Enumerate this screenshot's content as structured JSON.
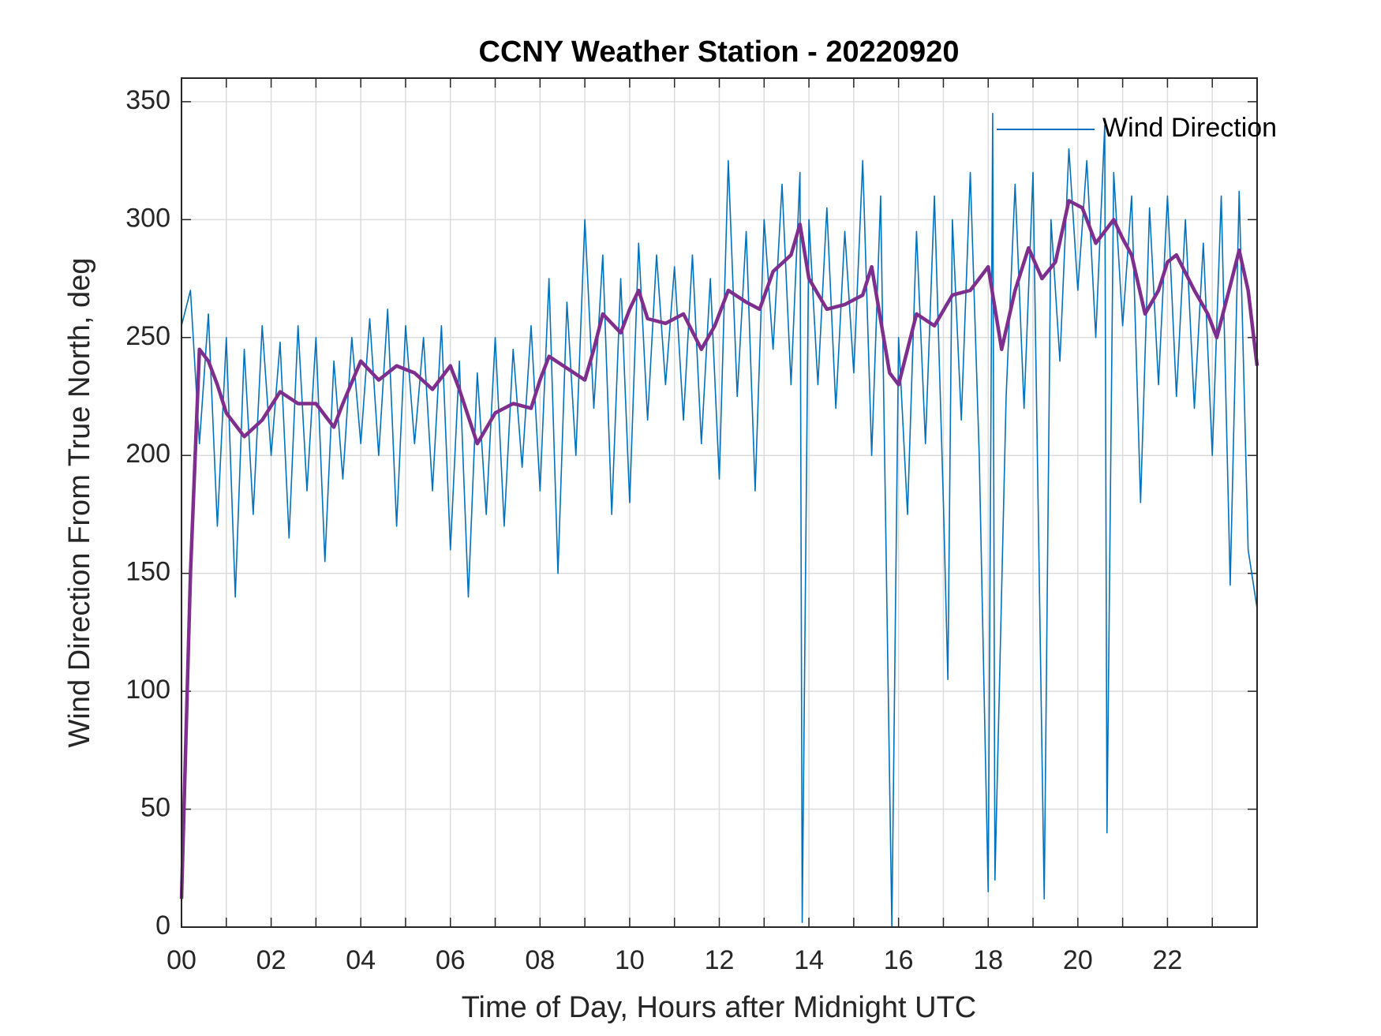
{
  "chart_data": {
    "type": "line",
    "title": "CCNY Weather Station - 20220920",
    "xlabel": "Time of Day, Hours after Midnight UTC",
    "ylabel": "Wind Direction From True North, deg",
    "xlim": [
      0,
      24
    ],
    "ylim": [
      0,
      360
    ],
    "xticks": [
      {
        "value": 0,
        "label": "00"
      },
      {
        "value": 2,
        "label": "02"
      },
      {
        "value": 4,
        "label": "04"
      },
      {
        "value": 6,
        "label": "06"
      },
      {
        "value": 8,
        "label": "08"
      },
      {
        "value": 10,
        "label": "10"
      },
      {
        "value": 12,
        "label": "12"
      },
      {
        "value": 14,
        "label": "14"
      },
      {
        "value": 16,
        "label": "16"
      },
      {
        "value": 18,
        "label": "18"
      },
      {
        "value": 20,
        "label": "20"
      },
      {
        "value": 22,
        "label": "22"
      }
    ],
    "xminorticks": [
      1,
      3,
      5,
      7,
      9,
      11,
      13,
      15,
      17,
      19,
      21,
      23
    ],
    "yticks": [
      0,
      50,
      100,
      150,
      200,
      250,
      300,
      350
    ],
    "grid": true,
    "legend": "upper right",
    "series": [
      {
        "name": "Wind Direction",
        "color": "#0072bd",
        "x": [
          0,
          0.2,
          0.4,
          0.6,
          0.8,
          1.0,
          1.2,
          1.4,
          1.6,
          1.8,
          2.0,
          2.2,
          2.4,
          2.6,
          2.8,
          3.0,
          3.2,
          3.4,
          3.6,
          3.8,
          4.0,
          4.2,
          4.4,
          4.6,
          4.8,
          5.0,
          5.2,
          5.4,
          5.6,
          5.8,
          6.0,
          6.2,
          6.4,
          6.6,
          6.8,
          7.0,
          7.2,
          7.4,
          7.6,
          7.8,
          8.0,
          8.2,
          8.4,
          8.6,
          8.8,
          9.0,
          9.2,
          9.4,
          9.6,
          9.8,
          10.0,
          10.2,
          10.4,
          10.6,
          10.8,
          11.0,
          11.2,
          11.4,
          11.6,
          11.8,
          12.0,
          12.2,
          12.4,
          12.6,
          12.8,
          13.0,
          13.2,
          13.4,
          13.6,
          13.8,
          13.85,
          14.0,
          14.2,
          14.4,
          14.6,
          14.8,
          15.0,
          15.2,
          15.4,
          15.6,
          15.85,
          16.0,
          16.2,
          16.4,
          16.6,
          16.8,
          17.0,
          17.1,
          17.2,
          17.4,
          17.6,
          17.8,
          18.0,
          18.1,
          18.15,
          18.4,
          18.6,
          18.8,
          19.0,
          19.25,
          19.4,
          19.6,
          19.8,
          20.0,
          20.2,
          20.4,
          20.6,
          20.65,
          20.8,
          21.0,
          21.2,
          21.4,
          21.6,
          21.8,
          22.0,
          22.2,
          22.4,
          22.6,
          22.8,
          23.0,
          23.2,
          23.4,
          23.6,
          23.8,
          24.0
        ],
        "values": [
          255,
          270,
          205,
          260,
          170,
          250,
          140,
          245,
          175,
          255,
          200,
          248,
          165,
          255,
          185,
          250,
          155,
          240,
          190,
          250,
          205,
          258,
          200,
          262,
          170,
          255,
          205,
          250,
          185,
          255,
          160,
          240,
          140,
          235,
          175,
          250,
          170,
          245,
          195,
          255,
          185,
          275,
          150,
          265,
          200,
          300,
          220,
          285,
          175,
          275,
          180,
          290,
          215,
          285,
          230,
          280,
          215,
          285,
          205,
          275,
          190,
          325,
          225,
          295,
          185,
          300,
          245,
          315,
          230,
          320,
          2,
          300,
          230,
          305,
          220,
          295,
          235,
          325,
          200,
          310,
          0,
          250,
          175,
          295,
          205,
          310,
          180,
          105,
          300,
          215,
          320,
          200,
          15,
          345,
          20,
          225,
          315,
          220,
          320,
          12,
          300,
          240,
          330,
          270,
          325,
          250,
          340,
          40,
          320,
          255,
          310,
          180,
          305,
          230,
          310,
          225,
          300,
          220,
          290,
          200,
          310,
          145,
          312,
          160,
          135
        ]
      },
      {
        "color": "#7e2f8e",
        "x": [
          0,
          0.2,
          0.4,
          0.6,
          0.8,
          1.0,
          1.4,
          1.8,
          2.2,
          2.6,
          3.0,
          3.4,
          3.6,
          4.0,
          4.4,
          4.8,
          5.2,
          5.6,
          6.0,
          6.2,
          6.6,
          7.0,
          7.4,
          7.8,
          8.0,
          8.2,
          8.6,
          9.0,
          9.2,
          9.4,
          9.8,
          10.0,
          10.2,
          10.4,
          10.8,
          11.2,
          11.6,
          11.9,
          12.2,
          12.6,
          12.9,
          13.2,
          13.6,
          13.8,
          14.0,
          14.4,
          14.8,
          15.2,
          15.4,
          15.8,
          16.0,
          16.4,
          16.8,
          17.2,
          17.6,
          18.0,
          18.3,
          18.6,
          18.9,
          19.2,
          19.5,
          19.8,
          20.1,
          20.4,
          20.8,
          21.0,
          21.2,
          21.5,
          21.8,
          22.0,
          22.2,
          22.6,
          22.9,
          23.1,
          23.4,
          23.6,
          23.8,
          24.0
        ],
        "values": [
          12,
          150,
          245,
          240,
          230,
          218,
          208,
          215,
          227,
          222,
          222,
          212,
          222,
          240,
          232,
          238,
          235,
          228,
          238,
          228,
          205,
          218,
          222,
          220,
          232,
          242,
          237,
          232,
          245,
          260,
          252,
          262,
          270,
          258,
          256,
          260,
          245,
          255,
          270,
          265,
          262,
          278,
          285,
          298,
          275,
          262,
          264,
          268,
          280,
          235,
          230,
          260,
          255,
          268,
          270,
          280,
          245,
          270,
          288,
          275,
          282,
          308,
          305,
          290,
          300,
          292,
          285,
          260,
          270,
          282,
          285,
          270,
          260,
          250,
          272,
          287,
          270,
          238
        ]
      }
    ]
  }
}
